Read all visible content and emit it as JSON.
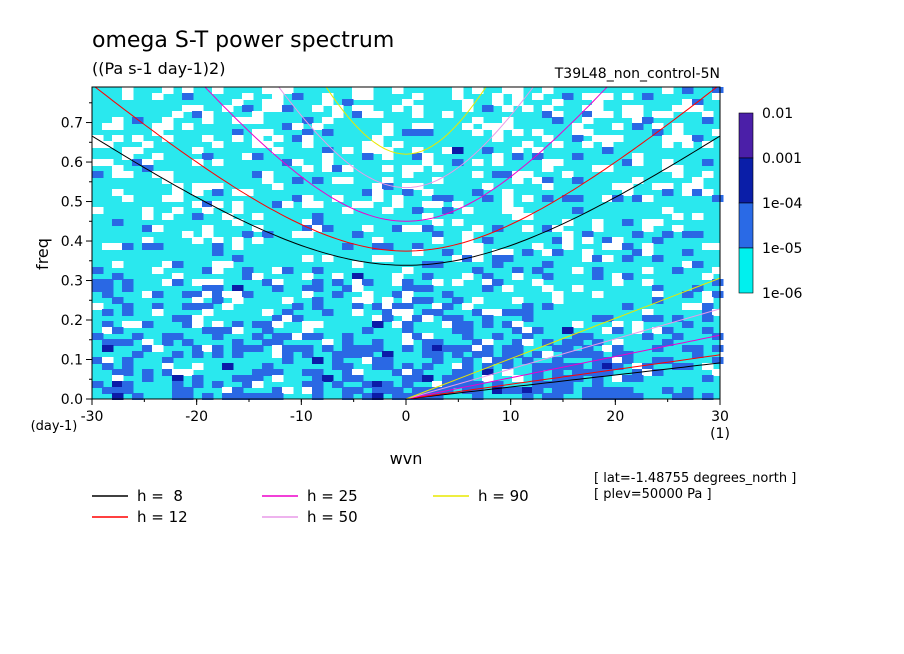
{
  "chart_data": {
    "type": "heatmap",
    "title": "omega S-T power spectrum",
    "subtitle": "((Pa s-1 day-1)2)",
    "run_label": "T39L48_non_control-5N",
    "xlabel": "wvn",
    "ylabel": "freq",
    "x_unit_label": "(1)",
    "y_unit_label": "(day-1)",
    "xlim": [
      -30,
      30
    ],
    "ylim": [
      0,
      0.79
    ],
    "x_ticks": [
      -30,
      -20,
      -10,
      0,
      10,
      20,
      30
    ],
    "x_tick_labels": [
      "-30",
      "-20",
      "-10",
      "0",
      "10",
      "20",
      "30"
    ],
    "y_ticks": [
      0,
      0.1,
      0.2,
      0.3,
      0.4,
      0.5,
      0.6,
      0.7
    ],
    "y_tick_labels": [
      "0.0",
      "0.1",
      "0.2",
      "0.3",
      "0.4",
      "0.5",
      "0.6",
      "0.7"
    ],
    "colorbar": {
      "levels": [
        "0.01",
        "0.001",
        "1e-04",
        "1e-05",
        "1e-06"
      ],
      "colors": [
        "#4b1fa8",
        "#0a1ea8",
        "#2a6ae6",
        "#00f0ee"
      ]
    },
    "field_colors": {
      "below": "#ffffff",
      "low": "#2ae8ee",
      "mid": "#2a68e4",
      "high": "#0c1ca8"
    },
    "dispersion_series": [
      {
        "name": "h =  8",
        "h": 8,
        "color": "#000000"
      },
      {
        "name": "h = 12",
        "h": 12,
        "color": "#ff0000"
      },
      {
        "name": "h = 25",
        "h": 25,
        "color": "#ee00cc"
      },
      {
        "name": "h = 50",
        "h": 50,
        "color": "#e89ae8"
      },
      {
        "name": "h = 90",
        "h": 90,
        "color": "#e8e800"
      }
    ],
    "annotations": [
      "[ lat=-1.48755 degrees_north ]",
      "[ plev=50000 Pa ]"
    ]
  }
}
